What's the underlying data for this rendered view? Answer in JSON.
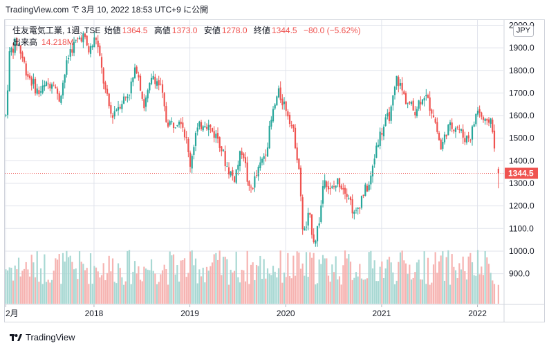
{
  "header": {
    "published": "TradingView.com で 3月 10, 2022 18:53 UTC+9 に公開"
  },
  "legend": {
    "symbol": "住友電気工業, 1週, TSE",
    "open_label": "始値",
    "open": "1364.5",
    "high_label": "高値",
    "high": "1373.0",
    "low_label": "安値",
    "low": "1278.0",
    "close_label": "終値",
    "close": "1344.5",
    "change": "−80.0 (−5.62%)",
    "volume_label": "出来高",
    "volume": "14.218M"
  },
  "currency_button": "JPY",
  "footer": {
    "brand": "TradingView"
  },
  "colors": {
    "up": "#26a69a",
    "down": "#ef5350",
    "up_volume": "#a8d8d3",
    "down_volume": "#f6b3b1",
    "grid": "#e0e3eb",
    "last_price": "#ef5350"
  },
  "chart_data": {
    "type": "candlestick",
    "price_axis": {
      "ticks": [
        900,
        1000,
        1100,
        1200,
        1300,
        1400,
        1500,
        1600,
        1700,
        1800,
        1900,
        2000
      ],
      "tick_labels": [
        "900.0",
        "1000.0",
        "1100.0",
        "1200.0",
        "1300.0",
        "1400.0",
        "1500.0",
        "1600.0",
        "1700.0",
        "1800.0",
        "1900.0",
        "2000.0"
      ],
      "range": [
        860,
        2040
      ]
    },
    "time_axis": {
      "labels": [
        "2月",
        "2018",
        "2019",
        "2020",
        "2021",
        "2022"
      ],
      "positions": [
        2017.08,
        2018.0,
        2019.0,
        2020.0,
        2021.0,
        2022.0
      ],
      "range": [
        2017.07,
        2022.27
      ]
    },
    "last_price": {
      "value": 1344.5,
      "label": "1344.5"
    },
    "anchors": [
      [
        2017.08,
        1600
      ],
      [
        2017.12,
        1880
      ],
      [
        2017.2,
        1930
      ],
      [
        2017.3,
        1790
      ],
      [
        2017.42,
        1700
      ],
      [
        2017.58,
        1760
      ],
      [
        2017.63,
        1660
      ],
      [
        2017.75,
        1890
      ],
      [
        2017.88,
        1960
      ],
      [
        2017.95,
        1880
      ],
      [
        2018.02,
        1950
      ],
      [
        2018.06,
        1850
      ],
      [
        2018.12,
        1700
      ],
      [
        2018.18,
        1600
      ],
      [
        2018.26,
        1650
      ],
      [
        2018.36,
        1700
      ],
      [
        2018.45,
        1820
      ],
      [
        2018.52,
        1640
      ],
      [
        2018.62,
        1780
      ],
      [
        2018.7,
        1720
      ],
      [
        2018.75,
        1580
      ],
      [
        2018.82,
        1560
      ],
      [
        2018.9,
        1600
      ],
      [
        2018.96,
        1500
      ],
      [
        2019.0,
        1380
      ],
      [
        2019.06,
        1520
      ],
      [
        2019.15,
        1580
      ],
      [
        2019.25,
        1520
      ],
      [
        2019.3,
        1500
      ],
      [
        2019.38,
        1380
      ],
      [
        2019.46,
        1320
      ],
      [
        2019.55,
        1460
      ],
      [
        2019.62,
        1260
      ],
      [
        2019.72,
        1360
      ],
      [
        2019.8,
        1460
      ],
      [
        2019.86,
        1600
      ],
      [
        2019.92,
        1700
      ],
      [
        2020.0,
        1640
      ],
      [
        2020.05,
        1580
      ],
      [
        2020.1,
        1480
      ],
      [
        2020.14,
        1360
      ],
      [
        2020.17,
        1120
      ],
      [
        2020.2,
        1080
      ],
      [
        2020.24,
        1160
      ],
      [
        2020.3,
        1040
      ],
      [
        2020.36,
        1160
      ],
      [
        2020.4,
        1350
      ],
      [
        2020.46,
        1260
      ],
      [
        2020.55,
        1310
      ],
      [
        2020.65,
        1260
      ],
      [
        2020.72,
        1150
      ],
      [
        2020.8,
        1250
      ],
      [
        2020.88,
        1300
      ],
      [
        2020.95,
        1480
      ],
      [
        2021.02,
        1550
      ],
      [
        2021.1,
        1620
      ],
      [
        2021.16,
        1770
      ],
      [
        2021.24,
        1680
      ],
      [
        2021.34,
        1620
      ],
      [
        2021.44,
        1700
      ],
      [
        2021.54,
        1610
      ],
      [
        2021.62,
        1450
      ],
      [
        2021.68,
        1540
      ],
      [
        2021.78,
        1560
      ],
      [
        2021.86,
        1500
      ],
      [
        2021.93,
        1510
      ],
      [
        2022.0,
        1630
      ],
      [
        2022.06,
        1580
      ],
      [
        2022.1,
        1550
      ],
      [
        2022.13,
        1600
      ],
      [
        2022.16,
        1540
      ],
      [
        2022.18,
        1420
      ]
    ],
    "last_candle": {
      "open": 1364.5,
      "high": 1373.0,
      "low": 1278.0,
      "close": 1344.5
    }
  }
}
